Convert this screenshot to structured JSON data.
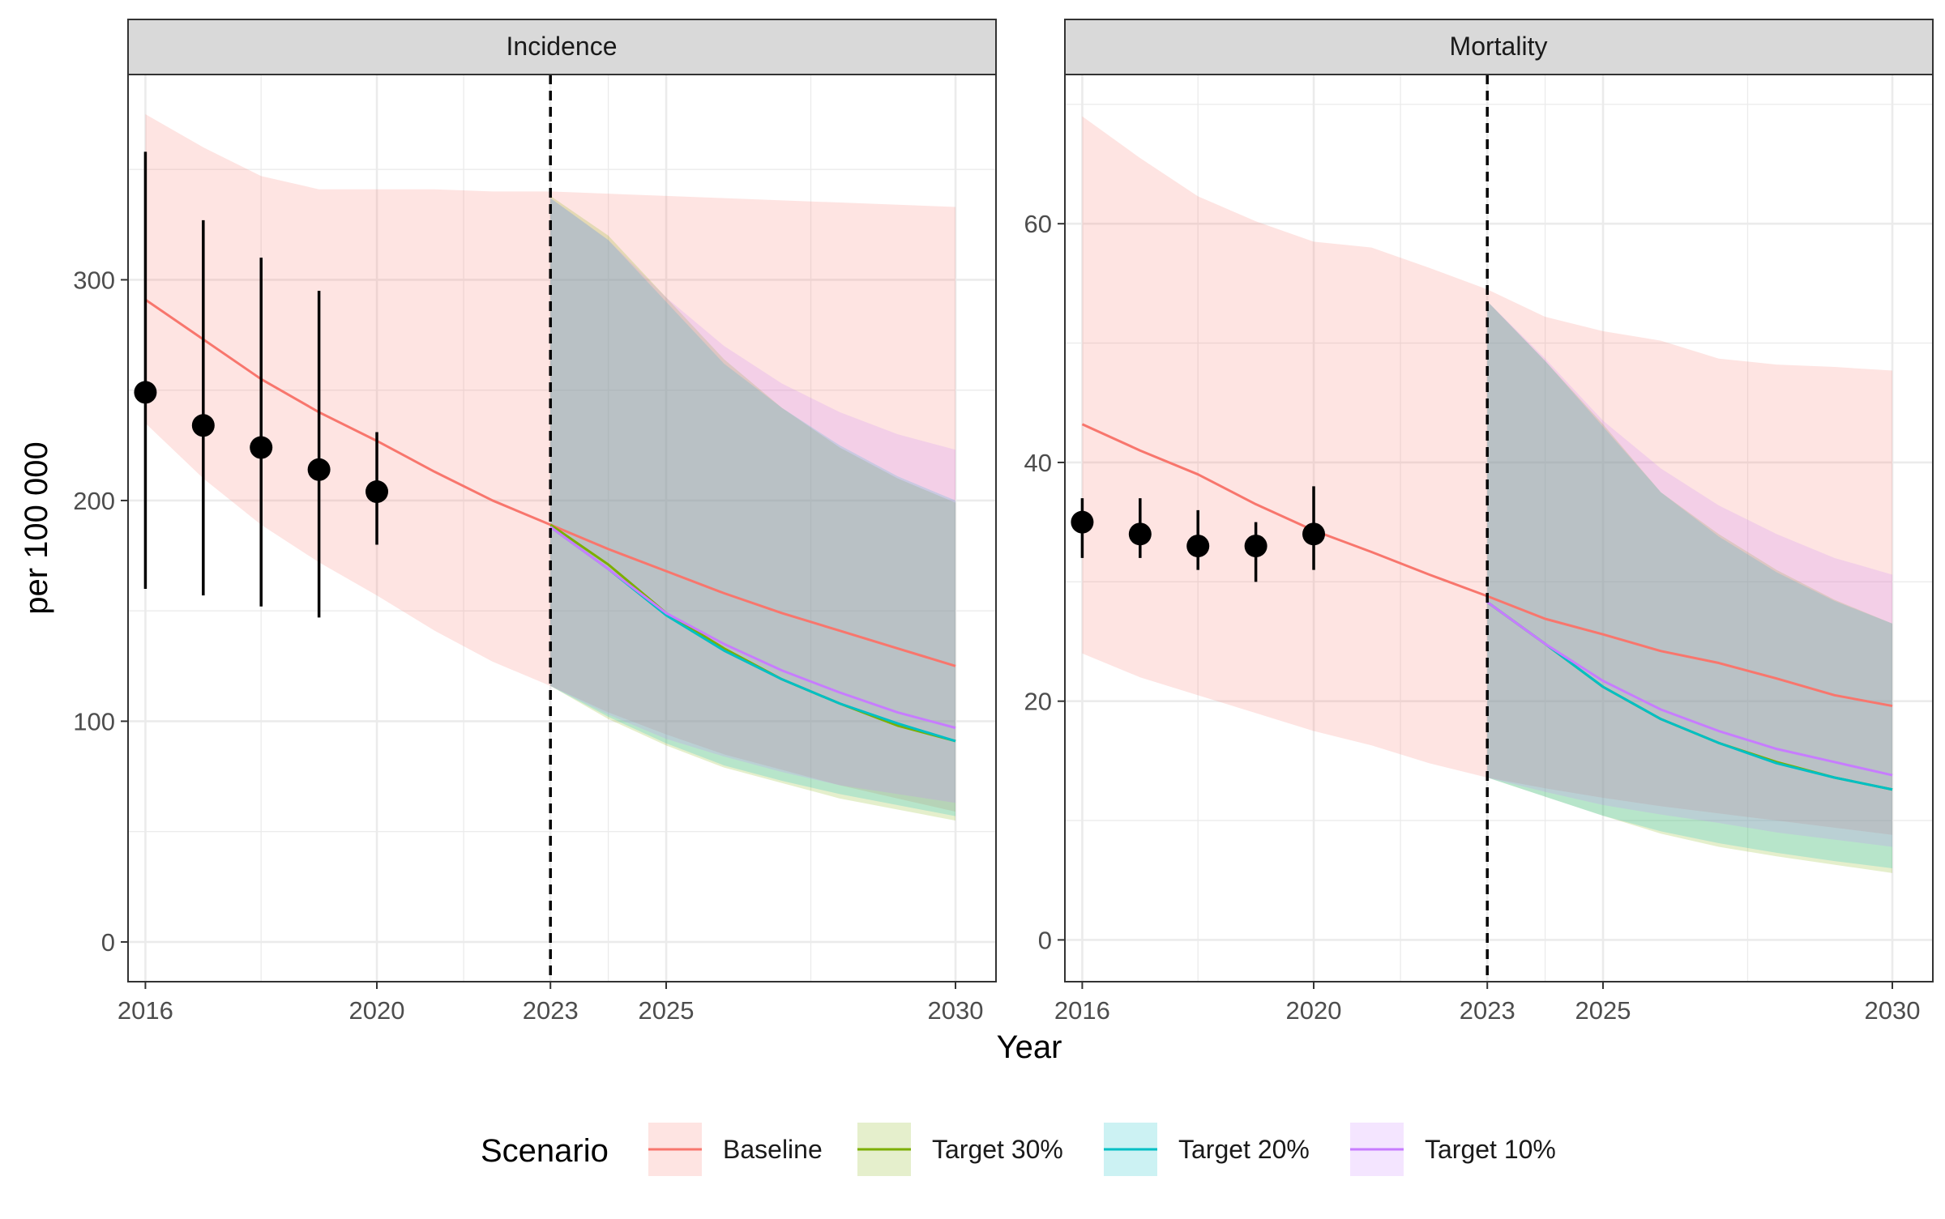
{
  "chart_data": {
    "type": "line",
    "xlabel": "Year",
    "ylabel": "per 100 000",
    "x": [
      2016,
      2017,
      2018,
      2019,
      2020,
      2021,
      2022,
      2023,
      2024,
      2025,
      2026,
      2027,
      2028,
      2029,
      2030
    ],
    "xticks": [
      2016,
      2020,
      2023,
      2025,
      2030
    ],
    "xlim": [
      2015.7,
      2030.7
    ],
    "vline": 2023,
    "legend_title": "Scenario",
    "legend_position": "bottom",
    "colors": {
      "Baseline": "#F8766D",
      "Target 30%": "#7CAE00",
      "Target 20%": "#00BFC4",
      "Target 10%": "#C77CFF"
    },
    "legend": [
      {
        "name": "Baseline",
        "color": "#F8766D"
      },
      {
        "name": "Target 30%",
        "color": "#7CAE00"
      },
      {
        "name": "Target 20%",
        "color": "#00BFC4"
      },
      {
        "name": "Target 10%",
        "color": "#C77CFF"
      }
    ],
    "panels": [
      {
        "title": "Incidence",
        "ylim": [
          -18,
          393
        ],
        "yticks": [
          0,
          100,
          200,
          300
        ],
        "series": [
          {
            "name": "Baseline",
            "x": [
              2016,
              2017,
              2018,
              2019,
              2020,
              2021,
              2022,
              2023,
              2024,
              2025,
              2026,
              2027,
              2028,
              2029,
              2030
            ],
            "values": [
              291,
              273,
              255,
              240,
              227,
              213,
              200,
              189,
              178,
              168,
              158,
              149,
              141,
              133,
              125
            ],
            "lower": [
              235,
              210,
              189,
              172,
              157,
              141,
              127,
              116,
              104,
              94,
              85,
              78,
              71,
              65,
              59
            ],
            "upper": [
              375,
              360,
              347,
              341,
              341,
              341,
              340,
              340,
              339,
              338,
              337,
              336,
              335,
              334,
              333
            ]
          },
          {
            "name": "Target 30%",
            "x": [
              2023,
              2024,
              2025,
              2026,
              2027,
              2028,
              2029,
              2030
            ],
            "values": [
              189,
              171,
              149,
              133,
              119,
              108,
              98,
              91
            ],
            "lower": [
              116,
              101,
              89,
              79,
              72,
              65,
              60,
              55
            ],
            "upper": [
              338,
              320,
              292,
              264,
              242,
              224,
              210,
              199
            ]
          },
          {
            "name": "Target 20%",
            "x": [
              2023,
              2024,
              2025,
              2026,
              2027,
              2028,
              2029,
              2030
            ],
            "values": [
              188,
              169,
              148,
              132,
              119,
              108,
              99,
              91
            ],
            "lower": [
              116,
              102,
              90,
              80,
              73,
              67,
              62,
              57
            ],
            "upper": [
              337,
              318,
              290,
              262,
              242,
              225,
              211,
              200
            ]
          },
          {
            "name": "Target 10%",
            "x": [
              2023,
              2024,
              2025,
              2026,
              2027,
              2028,
              2029,
              2030
            ],
            "values": [
              188,
              169,
              149,
              135,
              123,
              113,
              104,
              97
            ],
            "lower": [
              116,
              103,
              92,
              84,
              77,
              71,
              67,
              63
            ],
            "upper": [
              337,
              318,
              292,
              270,
              253,
              240,
              230,
              223
            ]
          }
        ],
        "observed": {
          "x": [
            2016,
            2017,
            2018,
            2019,
            2020
          ],
          "values": [
            249,
            234,
            224,
            214,
            204
          ],
          "lower": [
            160,
            157,
            152,
            147,
            180
          ],
          "upper": [
            358,
            327,
            310,
            295,
            231
          ]
        }
      },
      {
        "title": "Mortality",
        "ylim": [
          -3.5,
          72.5
        ],
        "yticks": [
          0,
          20,
          40,
          60
        ],
        "series": [
          {
            "name": "Baseline",
            "x": [
              2016,
              2017,
              2018,
              2019,
              2020,
              2021,
              2022,
              2023,
              2024,
              2025,
              2026,
              2027,
              2028,
              2029,
              2030
            ],
            "values": [
              43.2,
              41.0,
              39.0,
              36.5,
              34.3,
              32.5,
              30.6,
              28.8,
              26.9,
              25.6,
              24.2,
              23.2,
              21.9,
              20.5,
              19.6
            ],
            "lower": [
              24.0,
              22.0,
              20.5,
              19.0,
              17.5,
              16.3,
              14.8,
              13.6,
              12.7,
              11.9,
              11.2,
              10.6,
              10.0,
              9.4,
              8.8
            ],
            "upper": [
              69.0,
              65.5,
              62.3,
              60.2,
              58.5,
              58.0,
              56.3,
              54.5,
              52.2,
              51.0,
              50.2,
              48.7,
              48.2,
              48.0,
              47.7
            ]
          },
          {
            "name": "Target 30%",
            "x": [
              2023,
              2024,
              2025,
              2026,
              2027,
              2028,
              2029,
              2030
            ],
            "values": [
              28.3,
              24.8,
              21.2,
              18.5,
              16.5,
              14.9,
              13.6,
              12.6
            ],
            "lower": [
              13.6,
              12.0,
              10.4,
              8.9,
              7.8,
              7.0,
              6.3,
              5.6
            ],
            "upper": [
              53.5,
              48.5,
              43.2,
              37.5,
              34.0,
              31.0,
              28.5,
              26.5
            ]
          },
          {
            "name": "Target 20%",
            "x": [
              2023,
              2024,
              2025,
              2026,
              2027,
              2028,
              2029,
              2030
            ],
            "values": [
              28.3,
              24.8,
              21.2,
              18.5,
              16.5,
              14.8,
              13.6,
              12.6
            ],
            "lower": [
              13.6,
              12.0,
              10.4,
              9.1,
              8.1,
              7.3,
              6.6,
              6.0
            ],
            "upper": [
              53.5,
              48.5,
              43.0,
              37.5,
              33.8,
              30.8,
              28.4,
              26.5
            ]
          },
          {
            "name": "Target 10%",
            "x": [
              2023,
              2024,
              2025,
              2026,
              2027,
              2028,
              2029,
              2030
            ],
            "values": [
              28.3,
              24.8,
              21.7,
              19.3,
              17.5,
              16.0,
              14.9,
              13.8
            ],
            "lower": [
              13.6,
              12.4,
              11.3,
              10.5,
              9.8,
              9.0,
              8.4,
              7.8
            ],
            "upper": [
              53.5,
              48.7,
              43.5,
              39.5,
              36.4,
              34.0,
              32.0,
              30.6
            ]
          }
        ],
        "observed": {
          "x": [
            2016,
            2017,
            2018,
            2019,
            2020
          ],
          "values": [
            35,
            34,
            33,
            33,
            34
          ],
          "lower": [
            32,
            32,
            31,
            30,
            31
          ],
          "upper": [
            37,
            37,
            36,
            35,
            38
          ]
        }
      }
    ]
  }
}
